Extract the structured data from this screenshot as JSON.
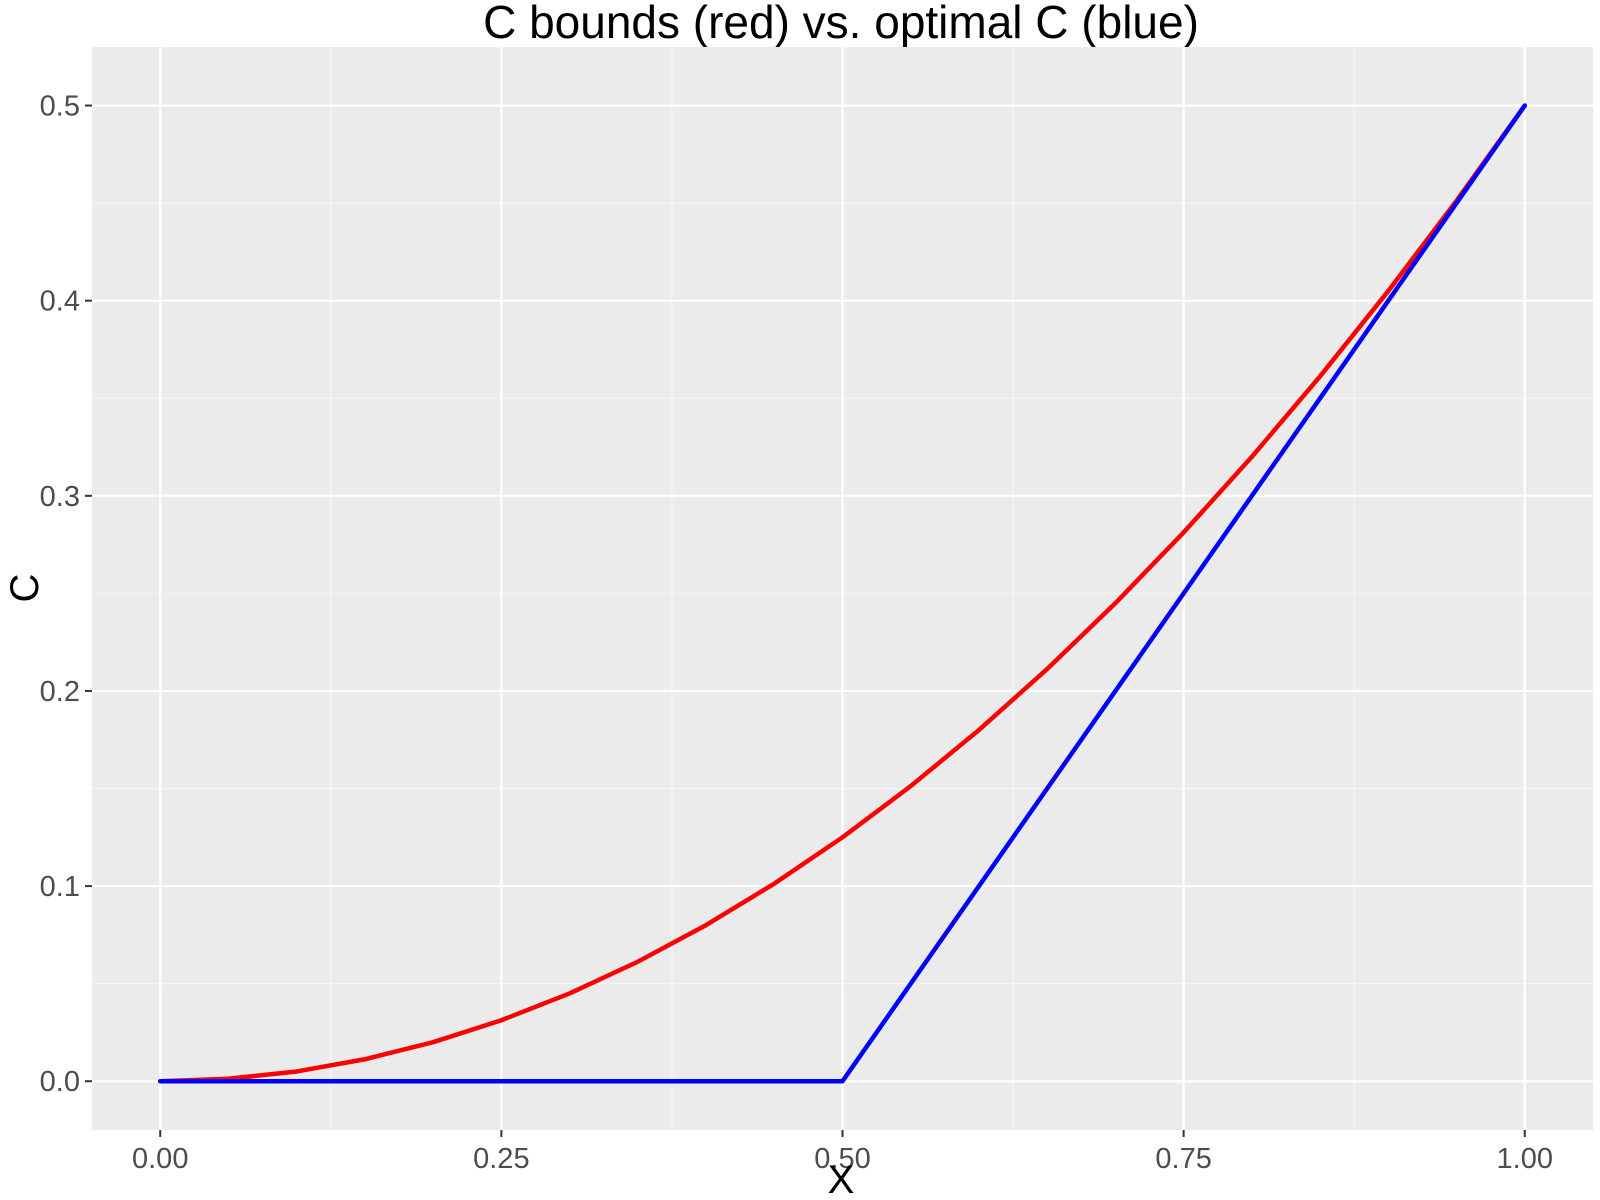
{
  "chart_data": {
    "type": "line",
    "title": "C bounds (red) vs. optimal C (blue)",
    "xlabel": "X",
    "ylabel": "C",
    "xlim": [
      -0.05,
      1.05
    ],
    "ylim": [
      -0.025,
      0.53
    ],
    "grid": true,
    "legend": "none",
    "background": "#EBEBEB",
    "x_ticks": [
      {
        "value": 0.0,
        "label": "0.00"
      },
      {
        "value": 0.25,
        "label": "0.25"
      },
      {
        "value": 0.5,
        "label": "0.50"
      },
      {
        "value": 0.75,
        "label": "0.75"
      },
      {
        "value": 1.0,
        "label": "1.00"
      }
    ],
    "y_ticks": [
      {
        "value": 0.0,
        "label": "0.0"
      },
      {
        "value": 0.1,
        "label": "0.1"
      },
      {
        "value": 0.2,
        "label": "0.2"
      },
      {
        "value": 0.3,
        "label": "0.3"
      },
      {
        "value": 0.4,
        "label": "0.4"
      },
      {
        "value": 0.5,
        "label": "0.5"
      }
    ],
    "series": [
      {
        "color": "#FF0000",
        "x": [
          0.0,
          0.05,
          0.1,
          0.15,
          0.2,
          0.25,
          0.3,
          0.35,
          0.4,
          0.45,
          0.5,
          0.55,
          0.6,
          0.65,
          0.7,
          0.75,
          0.8,
          0.85,
          0.9,
          0.95,
          1.0
        ],
        "y": [
          0.0,
          0.00125,
          0.005,
          0.01125,
          0.02,
          0.03125,
          0.045,
          0.06125,
          0.08,
          0.10125,
          0.125,
          0.15125,
          0.18,
          0.21125,
          0.245,
          0.28125,
          0.32,
          0.36125,
          0.405,
          0.45125,
          0.5
        ]
      },
      {
        "color": "#0000FF",
        "x": [
          0.0,
          0.25,
          0.5,
          0.75,
          1.0
        ],
        "y": [
          0.0,
          0.0,
          0.0,
          0.25,
          0.5
        ]
      }
    ]
  }
}
